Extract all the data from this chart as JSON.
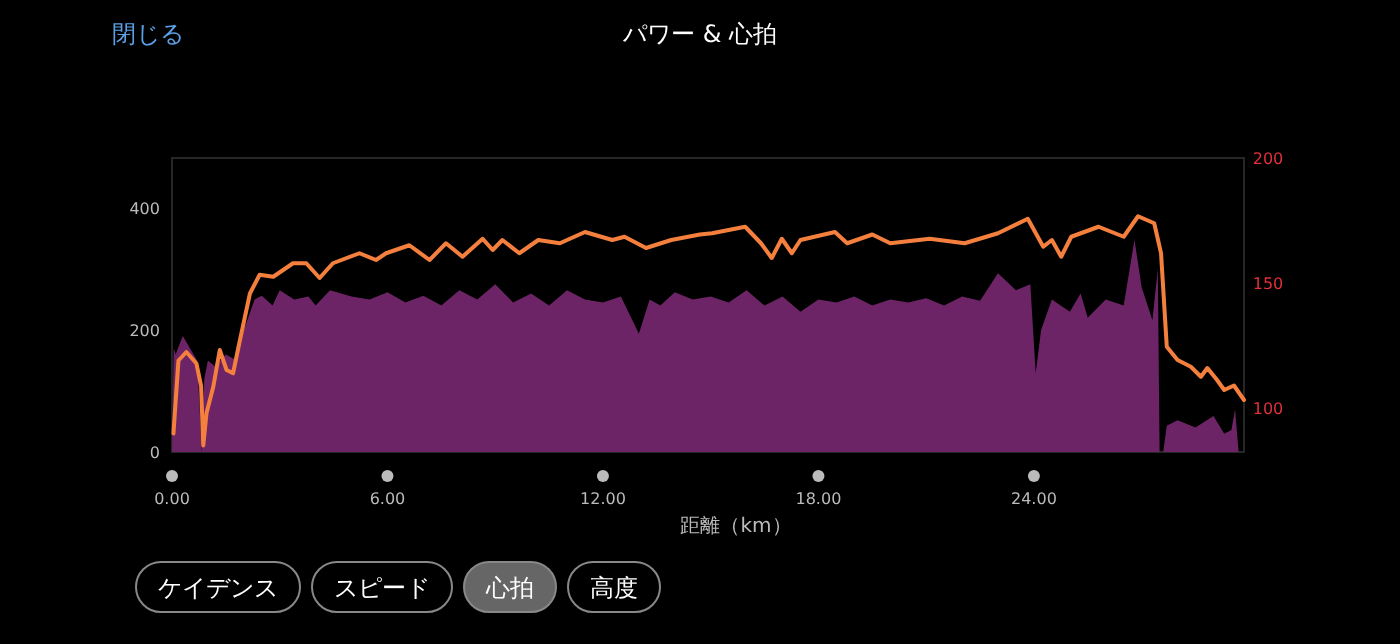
{
  "chart_data": {
    "type": "area",
    "title": "パワー & 心拍",
    "xlabel": "距離（km）",
    "annotations": [
      "閉じる",
      "ケイデンス",
      "スピード",
      "心拍",
      "高度"
    ],
    "xlim": [
      0,
      29.85
    ],
    "ylim": [
      0,
      482
    ],
    "y2lim": [
      82.4,
      200
    ],
    "xticks": [
      {
        "value": 0,
        "label": "0.00"
      },
      {
        "value": 6,
        "label": "6.00"
      },
      {
        "value": 12,
        "label": "12.00"
      },
      {
        "value": 18,
        "label": "18.00"
      },
      {
        "value": 24,
        "label": "24.00"
      }
    ],
    "yticks": [
      0,
      200,
      400
    ],
    "y2ticks": [
      100,
      150,
      200
    ],
    "grid": false,
    "series": [
      {
        "axis": "y",
        "color": "#6d2466",
        "x": [
          0,
          0.05,
          0.1,
          0.3,
          0.5,
          0.7,
          0.78,
          0.82,
          0.9,
          1.0,
          1.2,
          1.5,
          1.8,
          2.0,
          2.3,
          2.5,
          2.8,
          3.0,
          3.4,
          3.8,
          4.0,
          4.4,
          5.0,
          5.5,
          6.0,
          6.5,
          7.0,
          7.5,
          8.0,
          8.5,
          9.0,
          9.5,
          10.0,
          10.5,
          11.0,
          11.5,
          12.0,
          12.5,
          13.0,
          13.3,
          13.6,
          14.0,
          14.5,
          15.0,
          15.5,
          16.0,
          16.5,
          17.0,
          17.5,
          18.0,
          18.5,
          19.0,
          19.5,
          20.0,
          20.5,
          21.0,
          21.5,
          22.0,
          22.5,
          23.0,
          23.5,
          23.9,
          24.05,
          24.2,
          24.5,
          25.0,
          25.3,
          25.5,
          26.0,
          26.5,
          26.8,
          27.0,
          27.3,
          27.45,
          27.5,
          27.6,
          27.7,
          28.0,
          28.5,
          29.0,
          29.3,
          29.5,
          29.6,
          29.7
        ],
        "values": [
          0,
          170,
          160,
          190,
          170,
          150,
          60,
          0,
          120,
          150,
          140,
          160,
          150,
          200,
          250,
          256,
          240,
          265,
          250,
          255,
          240,
          265,
          255,
          250,
          262,
          245,
          256,
          240,
          265,
          250,
          275,
          245,
          260,
          240,
          265,
          250,
          245,
          255,
          194,
          250,
          240,
          262,
          250,
          255,
          245,
          265,
          240,
          255,
          230,
          250,
          245,
          255,
          240,
          250,
          245,
          252,
          240,
          255,
          248,
          293,
          265,
          275,
          129,
          200,
          250,
          230,
          260,
          220,
          250,
          240,
          348,
          270,
          216,
          300,
          0,
          0,
          43,
          52,
          40,
          59,
          30,
          36,
          70,
          0
        ]
      },
      {
        "type": "line",
        "axis": "y2",
        "color": "#f5803e",
        "x": [
          0.04,
          0.18,
          0.4,
          0.68,
          0.81,
          0.87,
          0.96,
          1.15,
          1.33,
          1.52,
          1.7,
          1.89,
          2.17,
          2.44,
          2.82,
          3.37,
          3.74,
          4.11,
          4.48,
          5.22,
          5.68,
          5.96,
          6.61,
          7.17,
          7.63,
          8.09,
          8.65,
          8.93,
          9.2,
          9.67,
          10.2,
          10.8,
          11.5,
          12.26,
          12.6,
          13.2,
          13.9,
          14.7,
          15.04,
          15.96,
          16.4,
          16.7,
          16.98,
          17.26,
          17.5,
          18.46,
          18.8,
          19.5,
          20,
          21.1,
          22.07,
          23,
          23.83,
          24.26,
          24.5,
          24.76,
          25.04,
          25.8,
          26.5,
          26.9,
          27.35,
          27.54,
          27.7,
          28,
          28.37,
          28.65,
          28.83,
          29.1,
          29.3,
          29.57,
          29.85
        ],
        "values": [
          89.8,
          119,
          122.4,
          117.8,
          108.8,
          85,
          97.9,
          108.5,
          123.2,
          115.2,
          113.9,
          127,
          145.8,
          153.3,
          152.5,
          157.9,
          157.9,
          152,
          157.9,
          161.9,
          159.2,
          161.9,
          165.1,
          159.2,
          165.9,
          160.5,
          167.7,
          163.2,
          167.2,
          161.9,
          167.2,
          165.9,
          170.4,
          167.2,
          168.5,
          164,
          167.2,
          169.4,
          169.9,
          172.5,
          165.9,
          160,
          167.7,
          161.9,
          167.2,
          170.4,
          165.9,
          169.4,
          165.9,
          167.7,
          165.9,
          169.9,
          175.7,
          164.5,
          167.2,
          160.5,
          168.5,
          172.5,
          168.5,
          176.7,
          173.9,
          161.9,
          124.5,
          119.2,
          116.5,
          112.5,
          116,
          111.2,
          107.2,
          109,
          103.2
        ]
      }
    ]
  }
}
